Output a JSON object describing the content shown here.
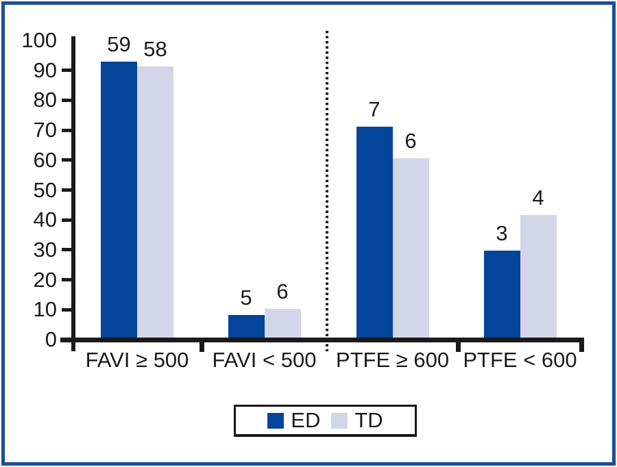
{
  "figure": {
    "frame_color": "#1b4d9e",
    "background_color": "#ffffff",
    "axis_color": "#1a1a1a"
  },
  "chart_data": {
    "type": "bar",
    "title": "",
    "xlabel": "",
    "ylabel": "",
    "categories": [
      "FAVI ≥ 500",
      "FAVI < 500",
      "PTFE ≥ 600",
      "PTFE < 600"
    ],
    "series": [
      {
        "name": "ED",
        "color": "#02459a",
        "bar_labels": [
          "59",
          "5",
          "7",
          "3"
        ],
        "values_pct": [
          92.2,
          7.5,
          70.5,
          29
        ]
      },
      {
        "name": "TD",
        "color": "#d3d5e8",
        "bar_labels": [
          "58",
          "6",
          "6",
          "4"
        ],
        "values_pct": [
          90.6,
          9.5,
          60,
          41
        ]
      }
    ],
    "y_axis": {
      "min": 0,
      "max": 100,
      "step": 10,
      "tick_labels": [
        "0",
        "10",
        "20",
        "30",
        "40",
        "50",
        "60",
        "70",
        "80",
        "90",
        "100"
      ]
    },
    "separator": {
      "style": "dotted-vertical-line",
      "between_categories": [
        "FAVI < 500",
        "PTFE ≥ 600"
      ]
    },
    "legend": {
      "position": "bottom",
      "entries": [
        {
          "label": "ED",
          "color": "#02459a"
        },
        {
          "label": "TD",
          "color": "#d3d5e8"
        }
      ]
    },
    "grid": false
  }
}
